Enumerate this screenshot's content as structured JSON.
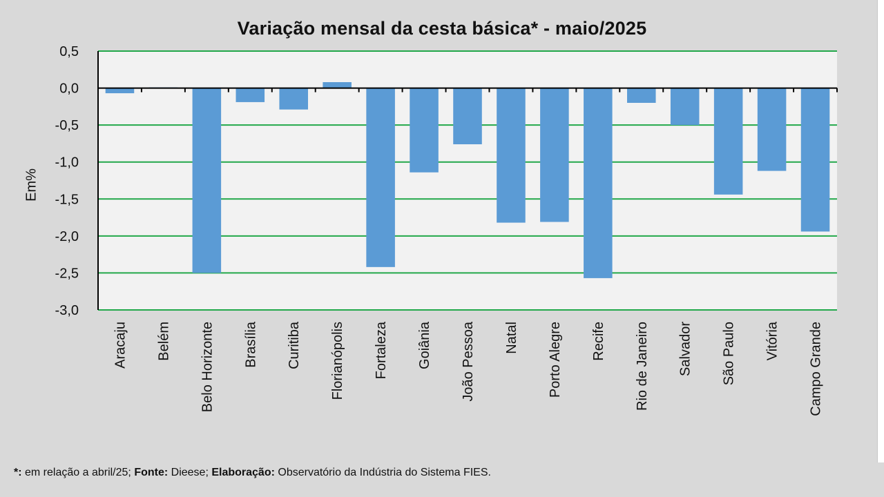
{
  "chart_data": {
    "type": "bar",
    "title": "Variação mensal da cesta básica* - maio/2025",
    "xlabel": "",
    "ylabel": "Em%",
    "ylim": [
      -3.0,
      0.5
    ],
    "yticks": [
      "0,5",
      "0,0",
      "-0,5",
      "-1,0",
      "-1,5",
      "-2,0",
      "-2,5",
      "-3,0"
    ],
    "ytick_values": [
      0.5,
      0.0,
      -0.5,
      -1.0,
      -1.5,
      -2.0,
      -2.5,
      -3.0
    ],
    "grid": true,
    "categories": [
      "Aracaju",
      "Belém",
      "Belo Horizonte",
      "Brasília",
      "Curitiba",
      "Florianópolis",
      "Fortaleza",
      "Goiânia",
      "João Pessoa",
      "Natal",
      "Porto Alegre",
      "Recife",
      "Rio de Janeiro",
      "Salvador",
      "São Paulo",
      "Vitória",
      "Campo Grande"
    ],
    "values": [
      -0.07,
      0.01,
      -2.5,
      -0.19,
      -0.29,
      0.08,
      -2.42,
      -1.14,
      -0.76,
      -1.82,
      -1.81,
      -2.57,
      -0.2,
      -0.5,
      -1.44,
      -1.12,
      -1.94
    ],
    "colors": {
      "bar": "#5b9bd5",
      "grid": "#22a84a",
      "plot_bg": "#f2f2f2",
      "panel_bg": "#d9d9d9",
      "axis": "#000000"
    }
  },
  "footnote": {
    "star_label": "*:",
    "star_text": " em relação a abril/25; ",
    "source_label": "Fonte:",
    "source_text": " Dieese; ",
    "elab_label": "Elaboração:",
    "elab_text": " Observatório da Indústria do Sistema FIES."
  }
}
